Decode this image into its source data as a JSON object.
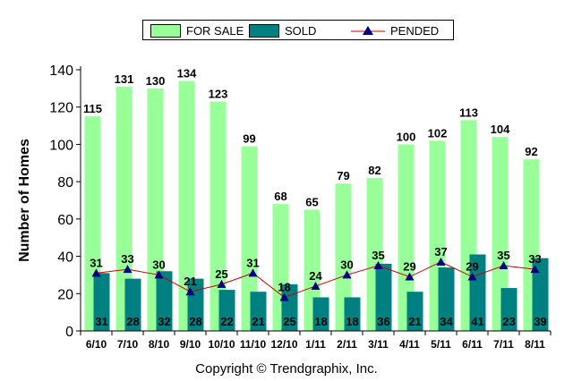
{
  "legend": {
    "for_sale": "FOR SALE",
    "sold": "SOLD",
    "pended": "PENDED"
  },
  "copyright": "Copyright © Trendgraphix, Inc.",
  "colors": {
    "for_sale": "#99ff99",
    "sold": "#008080",
    "pended_line": "#cc0000",
    "pended_marker": "#000080"
  },
  "chart_data": {
    "type": "bar",
    "ylabel": "Number of Homes",
    "xlabel": "",
    "ylim": [
      0,
      140
    ],
    "yticks": [
      0,
      20,
      40,
      60,
      80,
      100,
      120,
      140
    ],
    "grid": false,
    "legend_position": "top",
    "categories": [
      "6/10",
      "7/10",
      "8/10",
      "9/10",
      "10/10",
      "11/10",
      "12/10",
      "1/11",
      "2/11",
      "3/11",
      "4/11",
      "5/11",
      "6/11",
      "7/11",
      "8/11"
    ],
    "series": [
      {
        "name": "FOR SALE",
        "type": "bar",
        "values": [
          115,
          131,
          130,
          134,
          123,
          99,
          68,
          65,
          79,
          82,
          100,
          102,
          113,
          104,
          92
        ]
      },
      {
        "name": "SOLD",
        "type": "bar",
        "values": [
          31,
          28,
          32,
          28,
          22,
          21,
          25,
          18,
          18,
          36,
          21,
          34,
          41,
          23,
          39
        ]
      },
      {
        "name": "PENDED",
        "type": "line",
        "values": [
          31,
          33,
          30,
          21,
          25,
          31,
          18,
          24,
          30,
          35,
          29,
          37,
          29,
          35,
          33
        ]
      }
    ]
  }
}
